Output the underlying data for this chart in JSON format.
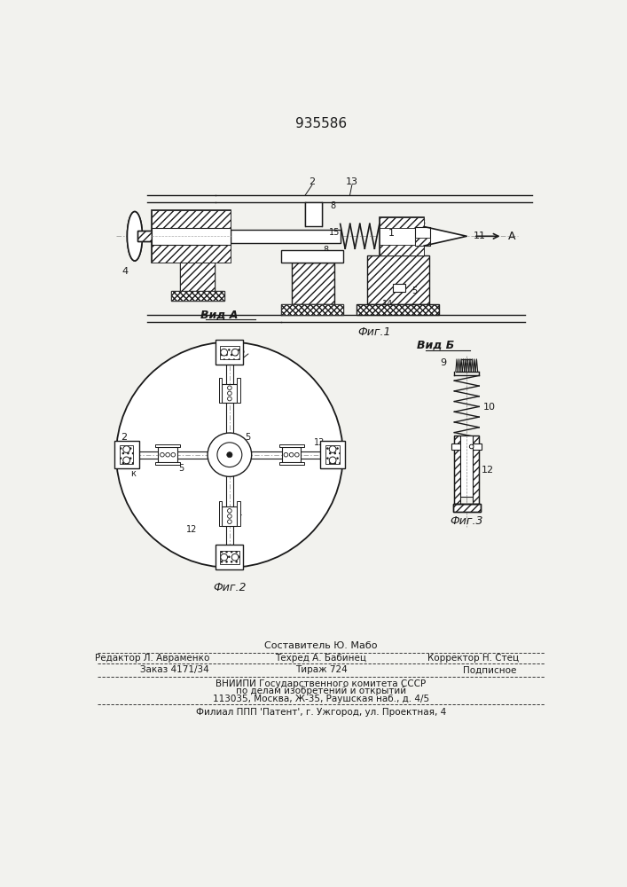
{
  "title": "935586",
  "bg_color": "#f2f2ee",
  "line_color": "#1a1a1a",
  "footer": {
    "line1_center": "Составитель Ю. Мабо",
    "line2_left": "Редактор Л. Авраменко",
    "line2_center": "Техред А. Бабинец",
    "line2_right": "Корректор Н. Стец",
    "line3_left": "Заказ 4171/34",
    "line3_center": "Тираж 724",
    "line3_right": "Подписное",
    "line4_center": "ВНИИПИ Государственного комитета СССР",
    "line5_center": "по делам изобретений и открытий",
    "line6_center": "113035, Москва, Ж-35, Раушская наб., д. 4/5",
    "line7_center": "Филиал ППП 'Патент', г. Ужгород, ул. Проектная, 4"
  }
}
